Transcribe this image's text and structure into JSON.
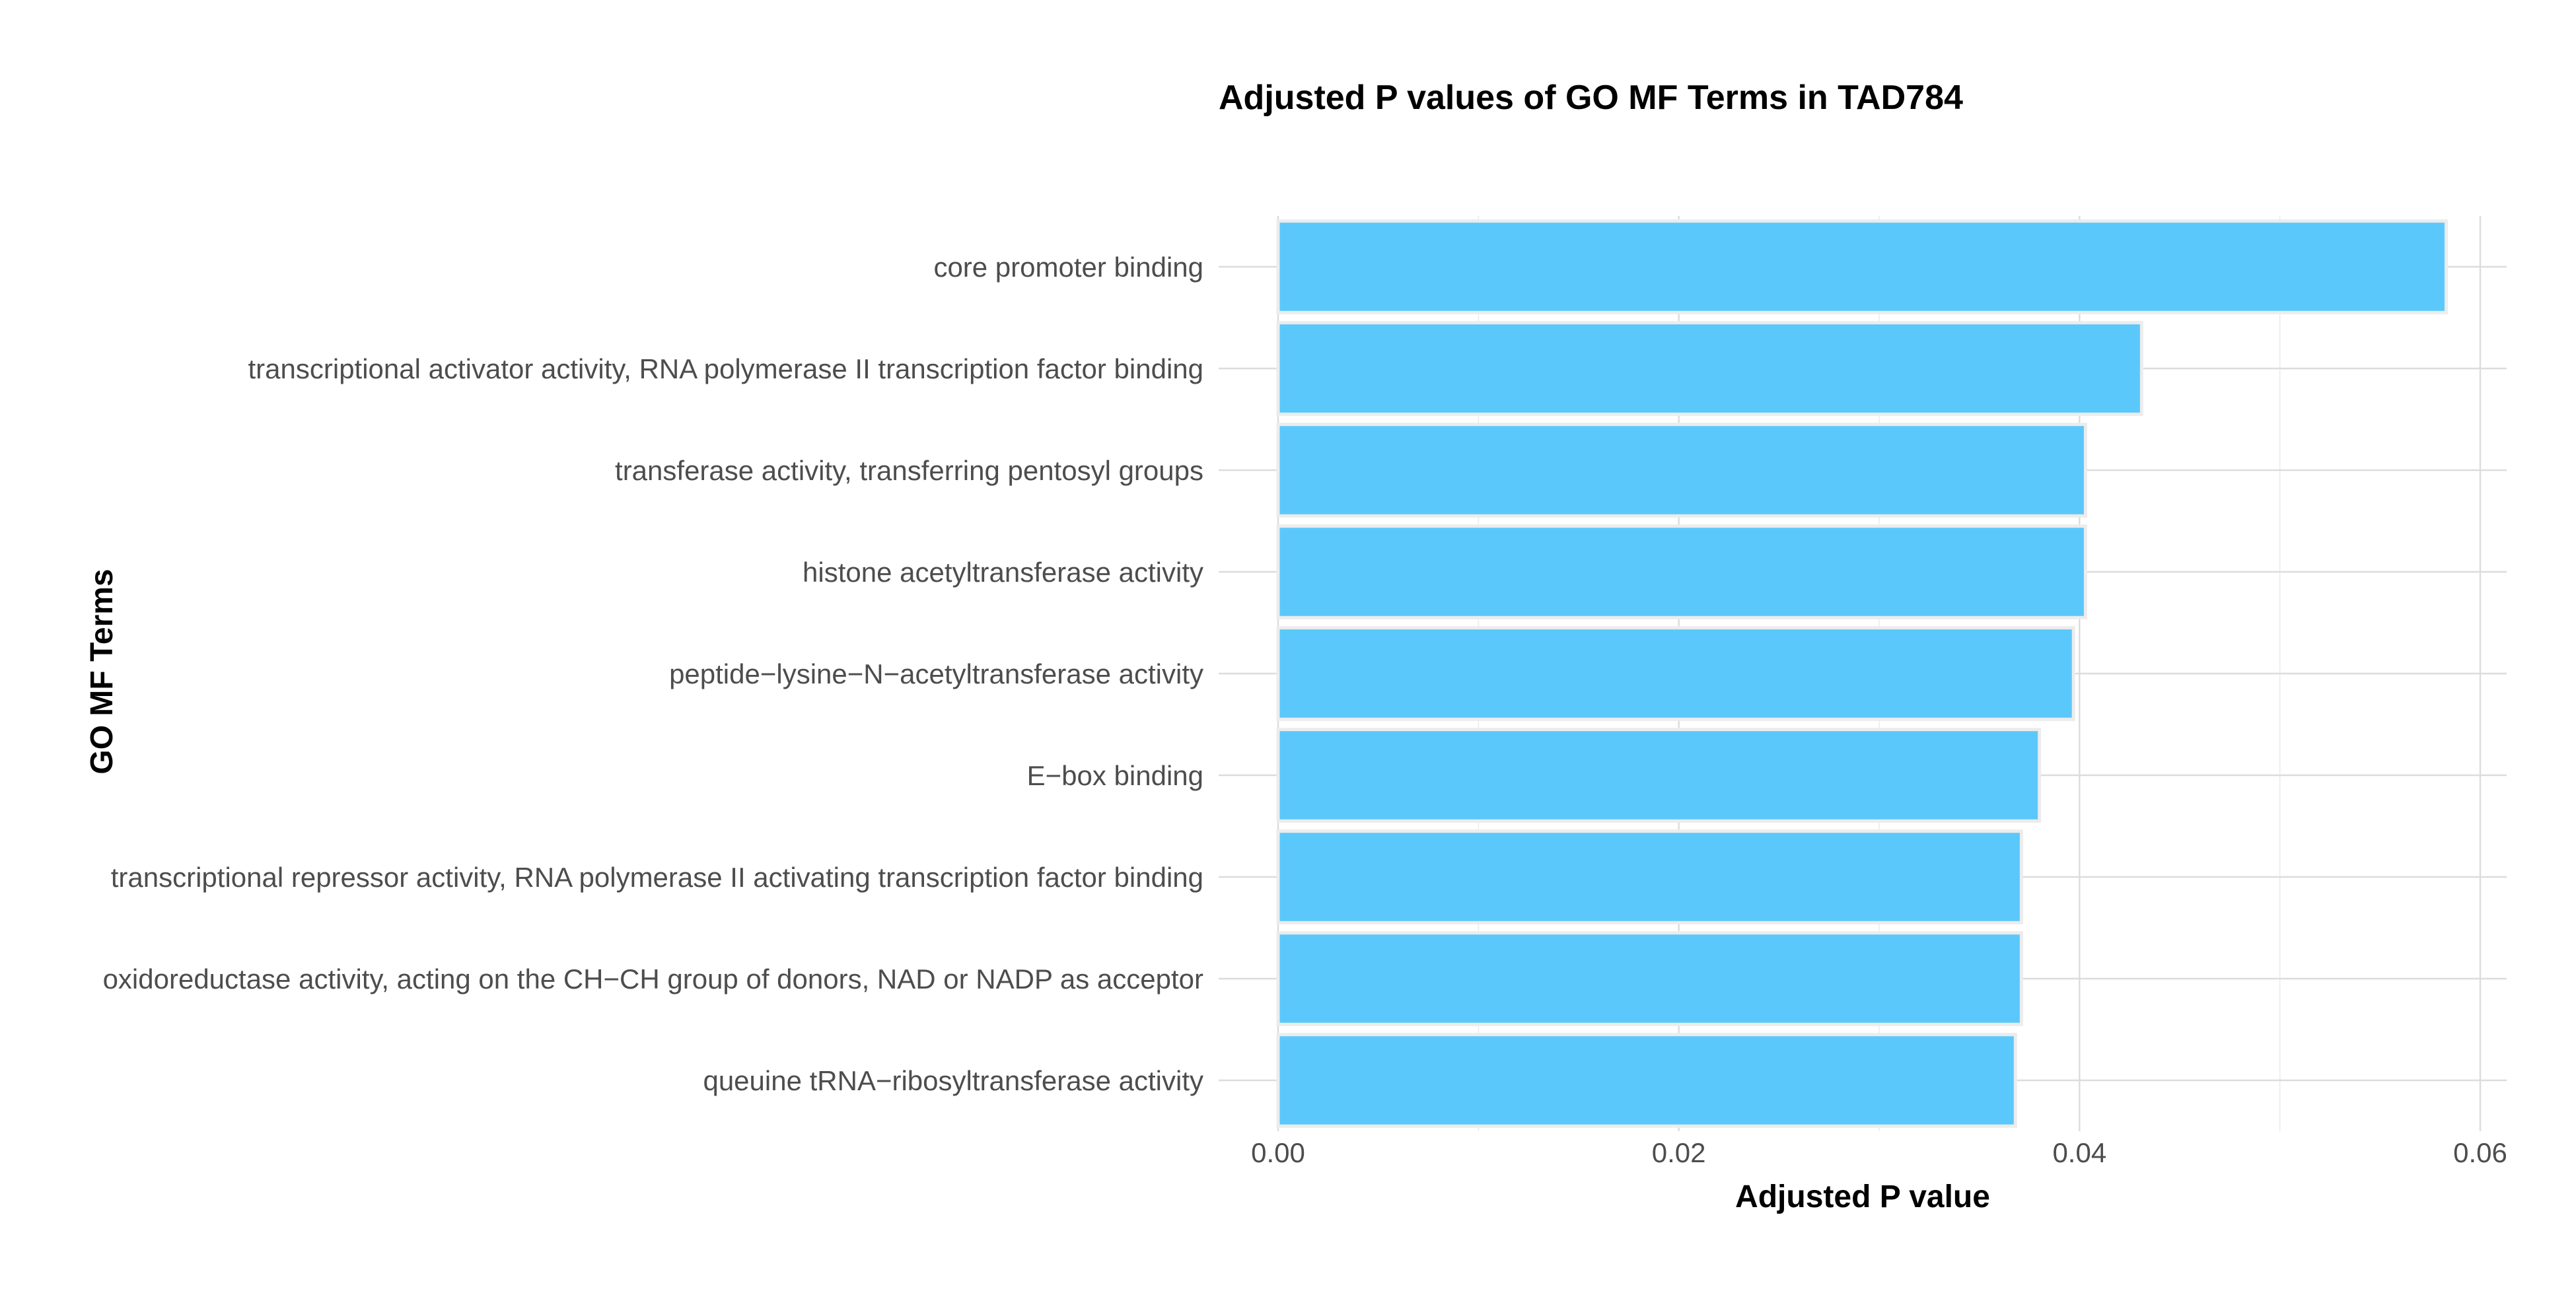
{
  "chart_data": {
    "type": "bar",
    "orientation": "horizontal",
    "title": "Adjusted P values of GO MF Terms in TAD784",
    "xlabel": "Adjusted P value",
    "ylabel": "GO MF Terms",
    "categories": [
      "core promoter binding",
      "transcriptional activator activity, RNA polymerase II transcription factor binding",
      "transferase activity, transferring pentosyl groups",
      "histone acetyltransferase activity",
      "peptide−lysine−N−acetyltransferase activity",
      "E−box binding",
      "transcriptional repressor activity, RNA polymerase II activating transcription factor binding",
      "oxidoreductase activity, acting on the CH−CH group of donors, NAD or NADP as acceptor",
      "queuine tRNA−ribosyltransferase activity"
    ],
    "values": [
      0.0583,
      0.0431,
      0.0403,
      0.0403,
      0.0397,
      0.038,
      0.0371,
      0.0371,
      0.0368
    ],
    "xlim": [
      0,
      0.06
    ],
    "xticks": [
      "0.00",
      "0.02",
      "0.04",
      "0.06"
    ],
    "xtick_values": [
      0,
      0.02,
      0.04,
      0.06
    ],
    "bar_color": "#5bc8fb",
    "bar_outline_color": "#ececec",
    "grid": true,
    "legend": false
  }
}
